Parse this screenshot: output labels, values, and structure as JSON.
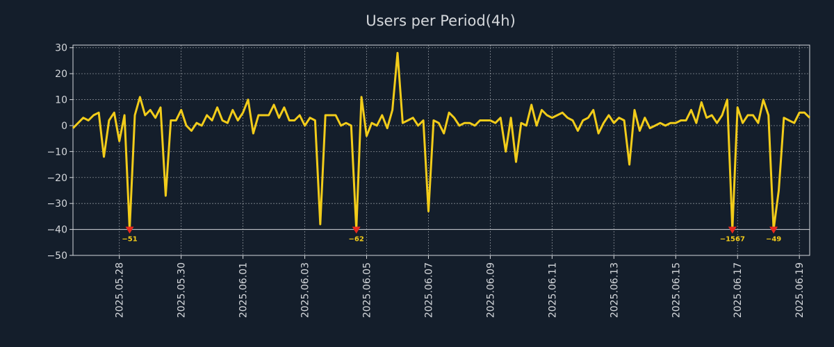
{
  "colors": {
    "background": "#141e2b",
    "line": "#f2cc1a",
    "marker": "#e8281e",
    "axis": "#d5d8dc",
    "grid": "#d5d8dc",
    "text": "#d5d8dc"
  },
  "chart_data": {
    "type": "line",
    "title": "Users per Period(4h)",
    "xlabel": "",
    "ylabel": "",
    "grid": true,
    "x_range": [
      "2025-05-26 12:00",
      "2025-06-19 08:00"
    ],
    "x_interval_hours": 4,
    "ylim": [
      -50,
      31
    ],
    "yticks": [
      30,
      20,
      10,
      0,
      -10,
      -20,
      -30,
      -40,
      -50
    ],
    "xticks": [
      "2025.05.28",
      "2025.05.30",
      "2025.06.01",
      "2025.06.03",
      "2025.06.05",
      "2025.06.07",
      "2025.06.09",
      "2025.06.11",
      "2025.06.13",
      "2025.06.15",
      "2025.06.17",
      "2025.06.19"
    ],
    "clip_floor": -40,
    "series": [
      {
        "name": "Users",
        "values": [
          -1,
          1,
          3,
          2,
          4,
          5,
          -12,
          2,
          5,
          -6,
          4,
          -40,
          4,
          11,
          4,
          6,
          3,
          7,
          -27,
          2,
          2,
          6,
          0,
          -2,
          1,
          0,
          4,
          2,
          7,
          2,
          1,
          6,
          2,
          5,
          10,
          -3,
          4,
          4,
          4,
          8,
          3,
          7,
          2,
          2,
          4,
          0,
          3,
          2,
          -38,
          4,
          4,
          4,
          0,
          1,
          0,
          -40,
          11,
          -4,
          1,
          0,
          4,
          -1,
          6,
          28,
          1,
          2,
          3,
          0,
          2,
          -33,
          2,
          1,
          -3,
          5,
          3,
          0,
          1,
          1,
          0,
          2,
          2,
          2,
          1,
          3,
          -10,
          3,
          -14,
          1,
          0,
          8,
          0,
          6,
          4,
          3,
          4,
          5,
          3,
          2,
          -2,
          2,
          3,
          6,
          -3,
          1,
          4,
          1,
          3,
          2,
          -15,
          6,
          -2,
          3,
          -1,
          0,
          1,
          0,
          1,
          1,
          2,
          2,
          6,
          1,
          9,
          3,
          4,
          1,
          4,
          10,
          -40,
          7,
          1,
          4,
          4,
          1,
          10,
          4,
          -40,
          -25,
          3,
          2,
          1,
          5,
          5,
          3
        ]
      }
    ],
    "clipped_markers": [
      {
        "index": 11,
        "label": "-51"
      },
      {
        "index": 55,
        "label": "-62"
      },
      {
        "index": 128,
        "label": "-1567"
      },
      {
        "index": 136,
        "label": "-49"
      }
    ]
  }
}
